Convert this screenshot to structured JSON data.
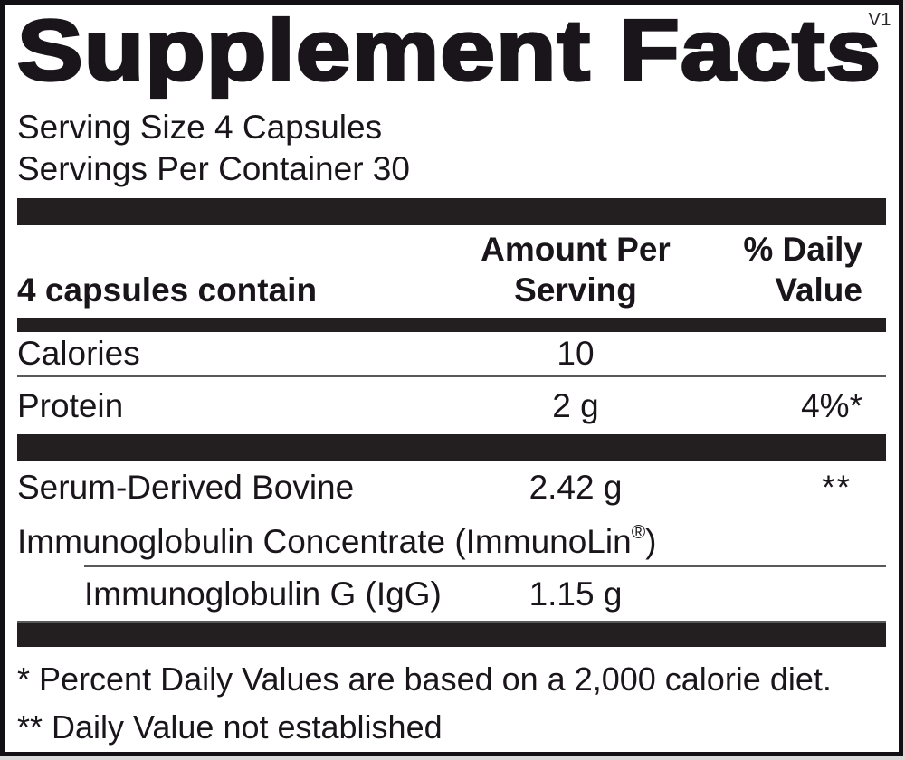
{
  "panel": {
    "version": "V1",
    "title": "Supplement Facts",
    "serving": {
      "size": "Serving Size 4 Capsules",
      "per_container": "Servings Per Container 30"
    },
    "header": {
      "left": "4 capsules contain",
      "amount": "Amount Per Serving",
      "daily_value": "% Daily Value"
    },
    "rows": [
      {
        "name": "Calories",
        "amount": "10",
        "daily_value": ""
      },
      {
        "name": "Protein",
        "amount": "2 g",
        "daily_value": "4%*"
      }
    ],
    "ingredient": {
      "line1": "Serum-Derived Bovine",
      "amount": "2.42 g",
      "daily_value": "**",
      "line2_text": "Immunoglobulin Concentrate (ImmunoLin",
      "line2_mark": "®",
      "line2_close": ")",
      "sub": {
        "name": "Immunoglobulin G (IgG)",
        "amount": "1.15 g",
        "daily_value": ""
      }
    },
    "footnotes": [
      "* Percent Daily Values are based on a 2,000 calorie diet.",
      "** Daily Value not established"
    ]
  }
}
